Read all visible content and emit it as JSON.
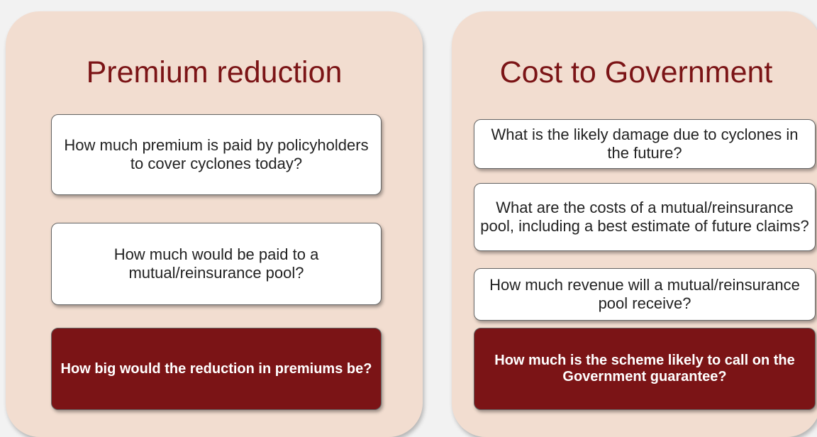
{
  "panels": [
    {
      "title": "Premium reduction",
      "boxes": [
        "How much premium is paid by policyholders to cover cyclones today?",
        "How much would be paid to a mutual/reinsurance pool?",
        "How big would the reduction in premiums be?"
      ]
    },
    {
      "title": "Cost to Government",
      "boxes": [
        "What is the likely damage due to cyclones in the future?",
        "What are the costs of a mutual/reinsurance pool, including a best estimate of future claims?",
        "How much revenue will a mutual/reinsurance pool receive?",
        "How much is the scheme likely to call on the Government guarantee?"
      ]
    }
  ]
}
